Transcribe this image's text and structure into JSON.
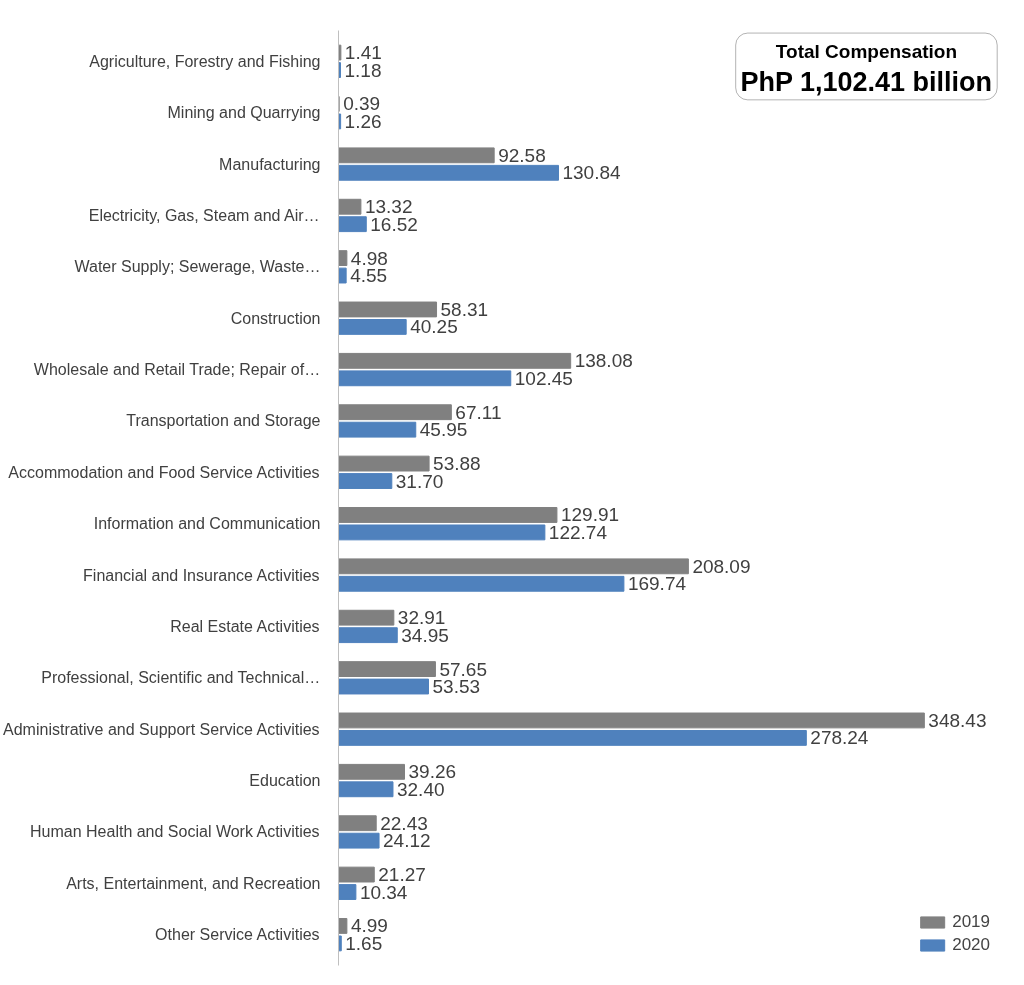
{
  "chart_data": {
    "type": "bar",
    "orientation": "horizontal",
    "categories": [
      "Agriculture, Forestry and Fishing",
      "Mining and Quarrying",
      "Manufacturing",
      "Electricity, Gas, Steam and Air…",
      "Water Supply; Sewerage, Waste…",
      "Construction",
      "Wholesale and Retail Trade; Repair of…",
      "Transportation and Storage",
      "Accommodation and Food Service Activities",
      "Information and Communication",
      "Financial and Insurance Activities",
      "Real Estate Activities",
      "Professional, Scientific and Technical…",
      "Administrative and Support Service Activities",
      "Education",
      "Human Health and Social Work Activities",
      "Arts, Entertainment, and Recreation",
      "Other Service Activities"
    ],
    "series": [
      {
        "name": "2019",
        "color": "#808080",
        "values": [
          1.41,
          0.39,
          92.58,
          13.32,
          4.98,
          58.31,
          138.08,
          67.11,
          53.88,
          129.91,
          208.09,
          32.91,
          57.65,
          348.43,
          39.26,
          22.43,
          21.27,
          4.99
        ],
        "value_labels": [
          "1.41",
          "0.39",
          "92.58",
          "13.32",
          "4.98",
          "58.31",
          "138.08",
          "67.11",
          "53.88",
          "129.91",
          "208.09",
          "32.91",
          "57.65",
          "348.43",
          "39.26",
          "22.43",
          "21.27",
          "4.99"
        ]
      },
      {
        "name": "2020",
        "color": "#4f81bd",
        "values": [
          1.18,
          1.26,
          130.84,
          16.52,
          4.55,
          40.25,
          102.45,
          45.95,
          31.7,
          122.74,
          169.74,
          34.95,
          53.53,
          278.24,
          32.4,
          24.12,
          10.34,
          1.65
        ],
        "value_labels": [
          "1.18",
          "1.26",
          "130.84",
          "16.52",
          "4.55",
          "40.25",
          "102.45",
          "45.95",
          "31.70",
          "122.74",
          "169.74",
          "34.95",
          "53.53",
          "278.24",
          "32.40",
          "24.12",
          "10.34",
          "1.65"
        ]
      }
    ],
    "tick_labels": "y",
    "legend": "bottom right",
    "grid": false,
    "annotations": [
      "Total Compensation",
      "PhP 1,102.41 billion"
    ]
  }
}
